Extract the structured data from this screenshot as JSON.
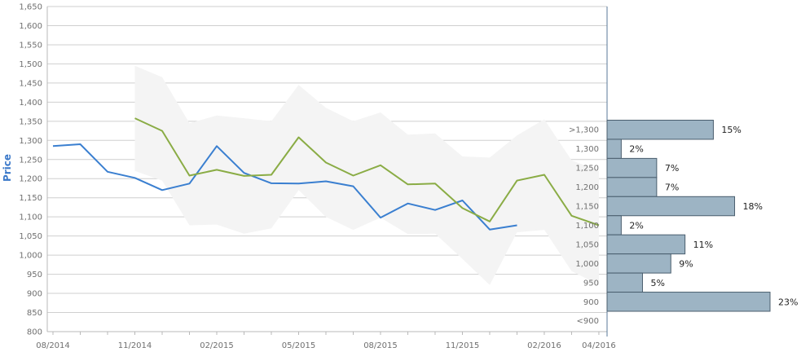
{
  "chart_data": {
    "type": "line",
    "ylabel": "Price",
    "ylim": [
      800,
      1650
    ],
    "y_ticks": [
      "800",
      "850",
      "900",
      "950",
      "1,000",
      "1,050",
      "1,100",
      "1,150",
      "1,200",
      "1,250",
      "1,300",
      "1,350",
      "1,400",
      "1,450",
      "1,500",
      "1,550",
      "1,600",
      "1,650"
    ],
    "y_tick_values": [
      800,
      850,
      900,
      950,
      1000,
      1050,
      1100,
      1150,
      1200,
      1250,
      1300,
      1350,
      1400,
      1450,
      1500,
      1550,
      1600,
      1650
    ],
    "x_ticks": [
      {
        "label": "08/2014",
        "m": 0
      },
      {
        "label": "11/2014",
        "m": 3
      },
      {
        "label": "02/2015",
        "m": 6
      },
      {
        "label": "05/2015",
        "m": 9
      },
      {
        "label": "08/2015",
        "m": 12
      },
      {
        "label": "11/2015",
        "m": 15
      },
      {
        "label": "02/2016",
        "m": 18
      },
      {
        "label": "04/2016",
        "m": 20
      }
    ],
    "xlim_months": [
      0,
      20.3
    ],
    "grid": true,
    "series": [
      {
        "key": "price",
        "color": "#3a7fd0",
        "points": [
          [
            0,
            1285
          ],
          [
            1,
            1290
          ],
          [
            2,
            1218
          ],
          [
            3,
            1202
          ],
          [
            4,
            1170
          ],
          [
            5,
            1187
          ],
          [
            6,
            1285
          ],
          [
            7,
            1215
          ],
          [
            8,
            1188
          ],
          [
            9,
            1187
          ],
          [
            10,
            1193
          ],
          [
            11,
            1180
          ],
          [
            12,
            1098
          ],
          [
            13,
            1135
          ],
          [
            14,
            1118
          ],
          [
            15,
            1143
          ],
          [
            16,
            1067
          ],
          [
            17,
            1078
          ]
        ]
      },
      {
        "key": "forecast",
        "color": "#8aac45",
        "points": [
          [
            3,
            1358
          ],
          [
            4,
            1325
          ],
          [
            5,
            1208
          ],
          [
            6,
            1223
          ],
          [
            7,
            1207
          ],
          [
            8,
            1210
          ],
          [
            9,
            1308
          ],
          [
            10,
            1242
          ],
          [
            11,
            1208
          ],
          [
            12,
            1235
          ],
          [
            13,
            1185
          ],
          [
            14,
            1187
          ],
          [
            15,
            1123
          ],
          [
            16,
            1088
          ],
          [
            17,
            1195
          ],
          [
            18,
            1210
          ],
          [
            19,
            1103
          ],
          [
            20,
            1078
          ]
        ]
      }
    ],
    "band": {
      "color": "#f4f4f4",
      "upper": [
        [
          3,
          1495
        ],
        [
          4,
          1465
        ],
        [
          5,
          1345
        ],
        [
          6,
          1365
        ],
        [
          7,
          1358
        ],
        [
          8,
          1350
        ],
        [
          9,
          1445
        ],
        [
          10,
          1385
        ],
        [
          11,
          1350
        ],
        [
          12,
          1373
        ],
        [
          13,
          1315
        ],
        [
          14,
          1318
        ],
        [
          15,
          1258
        ],
        [
          16,
          1255
        ],
        [
          17,
          1313
        ],
        [
          18,
          1355
        ],
        [
          19,
          1248
        ],
        [
          20,
          1220
        ]
      ],
      "lower": [
        [
          3,
          1220
        ],
        [
          4,
          1195
        ],
        [
          5,
          1078
        ],
        [
          6,
          1080
        ],
        [
          7,
          1056
        ],
        [
          8,
          1070
        ],
        [
          9,
          1170
        ],
        [
          10,
          1100
        ],
        [
          11,
          1066
        ],
        [
          12,
          1098
        ],
        [
          13,
          1055
        ],
        [
          14,
          1056
        ],
        [
          15,
          990
        ],
        [
          16,
          922
        ],
        [
          17,
          1060
        ],
        [
          18,
          1066
        ],
        [
          19,
          958
        ],
        [
          20,
          922
        ]
      ]
    },
    "distribution": {
      "color": "#9db4c4",
      "stroke": "#4a5e6e",
      "bins": [
        {
          "label": ">1,300",
          "pct": 15,
          "text": "15%"
        },
        {
          "label": "1,300",
          "pct": 2,
          "text": "2%"
        },
        {
          "label": "1,250",
          "pct": 7,
          "text": "7%"
        },
        {
          "label": "1,200",
          "pct": 7,
          "text": "7%"
        },
        {
          "label": "1,150",
          "pct": 18,
          "text": "18%"
        },
        {
          "label": "1,100",
          "pct": 2,
          "text": "2%"
        },
        {
          "label": "1,050",
          "pct": 11,
          "text": "11%"
        },
        {
          "label": "1,000",
          "pct": 9,
          "text": "9%"
        },
        {
          "label": "950",
          "pct": 5,
          "text": "5%"
        },
        {
          "label": "900",
          "pct": 23,
          "text": "23%"
        },
        {
          "label": "<900",
          "pct": 0,
          "text": ""
        }
      ]
    }
  }
}
